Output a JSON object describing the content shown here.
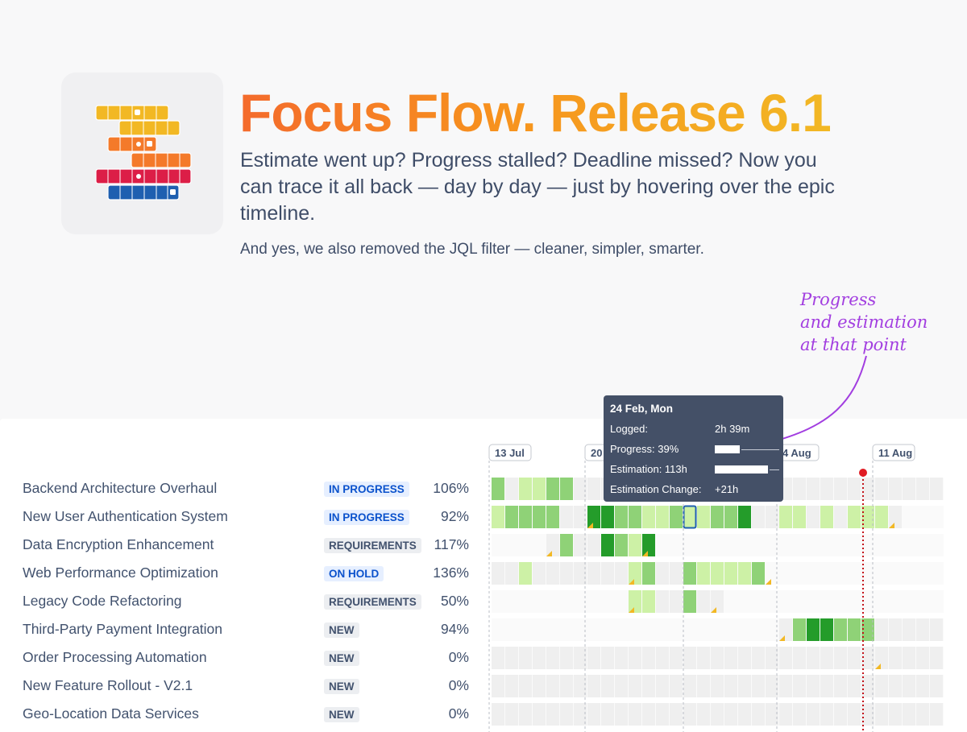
{
  "header": {
    "title": "Focus Flow. Release 6.1",
    "description": "Estimate went up? Progress stalled? Deadline missed? Now you can trace it all back — day by day — just by hovering over the epic timeline.",
    "subdescription": "And yes, we also removed the JQL filter — cleaner, simpler, smarter."
  },
  "annotation": {
    "line1": "Progress",
    "line2": "and estimation",
    "line3": "at that point"
  },
  "colors": {
    "title_start": "#f46b2c",
    "title_end": "#f2b824",
    "today_marker": "#c4151c",
    "cell_empty": "#efefef",
    "cell_light": "#cdf1a6",
    "cell_medium": "#8fd277",
    "cell_dark": "#249c2a",
    "badge_blue": "#0b52cc",
    "annotation": "#a23ee0"
  },
  "timeline": {
    "date_labels": [
      "13 Jul",
      "20 Jul",
      "4 Aug",
      "11 Aug"
    ]
  },
  "epics": [
    {
      "name": "Backend Architecture Overhaul",
      "status": "IN PROGRESS",
      "status_color": "blue",
      "progress": "106%"
    },
    {
      "name": "New User Authentication System",
      "status": "IN PROGRESS",
      "status_color": "blue",
      "progress": "92%"
    },
    {
      "name": "Data Encryption Enhancement",
      "status": "REQUIREMENTS",
      "status_color": "grey",
      "progress": "117%"
    },
    {
      "name": "Web Performance Optimization",
      "status": "ON HOLD",
      "status_color": "blue",
      "progress": "136%"
    },
    {
      "name": "Legacy Code Refactoring",
      "status": "REQUIREMENTS",
      "status_color": "grey",
      "progress": "50%"
    },
    {
      "name": "Third-Party Payment Integration",
      "status": "NEW",
      "status_color": "grey",
      "progress": "94%"
    },
    {
      "name": "Order Processing Automation",
      "status": "NEW",
      "status_color": "grey",
      "progress": "0%"
    },
    {
      "name": "New Feature Rollout - V2.1",
      "status": "NEW",
      "status_color": "grey",
      "progress": "0%"
    },
    {
      "name": "Geo-Location Data Services",
      "status": "NEW",
      "status_color": "grey",
      "progress": "0%"
    }
  ],
  "tooltip": {
    "date": "24 Feb, Mon",
    "logged_label": "Logged:",
    "logged_value": "2h 39m",
    "progress_label": "Progress: 39%",
    "progress_fraction": 0.39,
    "estimation_label": "Estimation: 113h",
    "estimation_fraction": 0.82,
    "change_label": "Estimation Change:",
    "change_value": "+21h"
  }
}
